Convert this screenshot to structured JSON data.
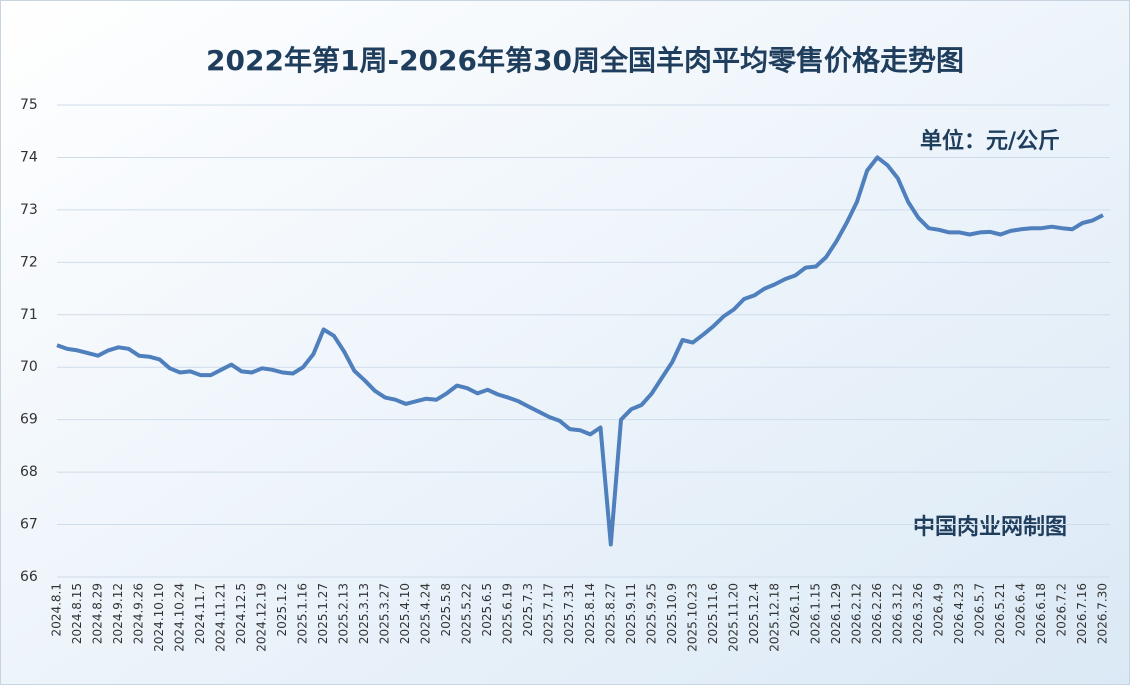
{
  "chart_data": {
    "type": "line",
    "title": "2022年第1周-2026年第30周全国羊肉平均零售价格走势图",
    "annotations": [
      "单位：元/公斤",
      "中国肉业网制图"
    ],
    "categories": [
      "2024.8.1",
      null,
      "2024.8.15",
      null,
      "2024.8.29",
      null,
      "2024.9.12",
      null,
      "2024.9.26",
      null,
      "2024.10.10",
      null,
      "2024.10.24",
      null,
      "2024.11.7",
      null,
      "2024.11.21",
      null,
      "2024.12.5",
      null,
      "2024.12.19",
      null,
      "2025.1.2",
      null,
      "2025.1.16",
      null,
      "2025.1.27",
      null,
      "2025.2.13",
      null,
      "2025.3.13",
      null,
      "2025.3.27",
      null,
      "2025.4.10",
      null,
      "2025.4.24",
      null,
      "2025.5.8",
      null,
      "2025.5.22",
      null,
      "2025.6.5",
      null,
      "2025.6.19",
      null,
      "2025.7.3",
      null,
      "2025.7.17",
      null,
      "2025.7.31",
      null,
      "2025.8.14",
      null,
      "2025.8.27",
      null,
      "2025.9.11",
      null,
      "2025.9.25",
      null,
      "2025.10.9",
      null,
      "2025.10.23",
      null,
      "2025.11.6",
      null,
      "2025.11.20",
      null,
      "2025.12.4",
      null,
      "2025.12.18",
      null,
      "2026.1.1",
      null,
      "2026.1.15",
      null,
      "2026.1.29",
      null,
      "2026.2.12",
      null,
      "2026.2.26",
      null,
      "2026.3.12",
      null,
      "2026.3.26",
      null,
      "2026.4.9",
      null,
      "2026.4.23",
      null,
      "2026.5.7",
      null,
      "2026.5.21",
      null,
      "2026.6.4",
      null,
      "2026.6.18",
      null,
      "2026.7.2",
      null,
      "2026.7.16",
      null,
      "2026.7.30"
    ],
    "series": [
      {
        "name": "全国羊肉平均零售价格",
        "color": "#4f7fbc",
        "values": [
          70.42,
          70.35,
          70.32,
          70.27,
          70.22,
          70.32,
          70.38,
          70.35,
          70.22,
          70.2,
          70.15,
          69.98,
          69.9,
          69.92,
          69.85,
          69.85,
          69.95,
          70.05,
          69.92,
          69.9,
          69.98,
          69.95,
          69.9,
          69.88,
          70.0,
          70.25,
          70.72,
          70.6,
          70.3,
          69.93,
          69.75,
          69.55,
          69.42,
          69.38,
          69.3,
          69.35,
          69.4,
          69.38,
          69.5,
          69.65,
          69.6,
          69.5,
          69.57,
          69.48,
          69.42,
          69.35,
          69.25,
          69.15,
          69.05,
          68.98,
          68.82,
          68.8,
          68.72,
          68.85,
          66.62,
          69.0,
          69.2,
          69.28,
          69.5,
          69.8,
          70.1,
          70.52,
          70.47,
          70.62,
          70.78,
          70.97,
          71.1,
          71.3,
          71.37,
          71.5,
          71.58,
          71.68,
          71.75,
          71.9,
          71.92,
          72.1,
          72.4,
          72.75,
          73.15,
          73.75,
          74.0,
          73.85,
          73.6,
          73.15,
          72.85,
          72.65,
          72.62,
          72.57,
          72.57,
          72.53,
          72.57,
          72.58,
          72.53,
          72.6,
          72.63,
          72.65,
          72.65,
          72.68,
          72.65,
          72.63,
          72.75,
          72.8,
          72.9
        ]
      }
    ],
    "ylim": [
      66,
      75
    ],
    "yticks": [
      66,
      67,
      68,
      69,
      70,
      71,
      72,
      73,
      74,
      75
    ],
    "grid": true
  }
}
